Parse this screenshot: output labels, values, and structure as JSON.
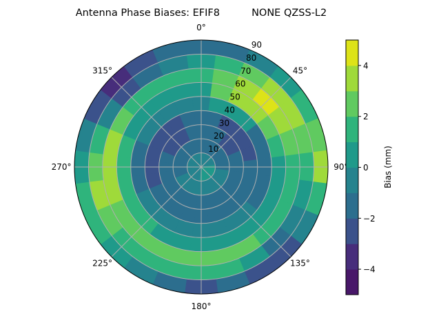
{
  "chart_data": {
    "type": "heatmap",
    "subtype": "polar-filled-contour",
    "title": "Antenna Phase Biases: EFIF8          NONE QZSS-L2",
    "azimuth_direction": "clockwise",
    "azimuth_zero": "top",
    "azimuth_tick_labels": [
      "0°",
      "45°",
      "90°",
      "135°",
      "180°",
      "225°",
      "270°",
      "315°"
    ],
    "radial_tick_labels": [
      "10",
      "20",
      "30",
      "40",
      "50",
      "60",
      "70",
      "80",
      "90"
    ],
    "radial_range": [
      0,
      90
    ],
    "grid": true,
    "azimuth_bins_deg": [
      0,
      15,
      30,
      45,
      60,
      75,
      90,
      105,
      120,
      135,
      150,
      165,
      180,
      195,
      210,
      225,
      240,
      255,
      270,
      285,
      300,
      315,
      330,
      345
    ],
    "radial_bins": [
      [
        0,
        10
      ],
      [
        10,
        20
      ],
      [
        20,
        30
      ],
      [
        30,
        40
      ],
      [
        40,
        50
      ],
      [
        50,
        60
      ],
      [
        60,
        70
      ],
      [
        70,
        80
      ],
      [
        80,
        90
      ]
    ],
    "values_mm": [
      [
        -0.5,
        -0.5,
        -0.5,
        -0.5,
        -0.5,
        -0.5,
        0.5,
        0.5,
        0.5,
        0.5,
        0.5,
        0.5,
        0.5,
        -0.5,
        -0.5,
        -0.5,
        -0.5,
        -0.5,
        -0.5,
        -0.5,
        -0.5,
        -0.5,
        -0.5,
        -0.5
      ],
      [
        -1.3,
        -1.3,
        -1.3,
        -1.3,
        -1.3,
        -1.3,
        -1.3,
        -0.5,
        -0.5,
        -0.5,
        -0.5,
        -0.5,
        -0.5,
        -0.5,
        -0.5,
        -0.5,
        -0.5,
        -1.3,
        -1.3,
        -1.3,
        -1.3,
        -1.3,
        -1.3,
        -1.3
      ],
      [
        -1.5,
        -1.5,
        -1.5,
        -2.5,
        -2.5,
        -1.5,
        -1.5,
        -1.5,
        -1.5,
        -1.5,
        -1.5,
        -1.5,
        -1.5,
        -1.5,
        -1.5,
        -1.5,
        -1.5,
        -1.5,
        -1.5,
        -1.5,
        -2.3,
        -2.3,
        -2.3,
        -1.5
      ],
      [
        -1.5,
        -1.5,
        -2.5,
        -2.5,
        -2.5,
        -2.5,
        -1.5,
        -1.5,
        -1.5,
        -1.5,
        -1.5,
        -1.5,
        -1.5,
        -1.5,
        -1.5,
        -1.5,
        -1.5,
        -2.5,
        -2.5,
        -2.5,
        -2.5,
        -2.5,
        -2.5,
        -1.5
      ],
      [
        -0.5,
        0.5,
        0.5,
        0.5,
        -1.5,
        -1.5,
        -1.5,
        -1.5,
        -1.5,
        -0.5,
        -0.5,
        -0.5,
        -0.5,
        -0.5,
        -0.5,
        -0.5,
        -0.5,
        -1.5,
        -1.5,
        -1.5,
        -0.5,
        -0.5,
        -0.5,
        -0.5
      ],
      [
        0.5,
        2.5,
        3.5,
        3.5,
        2.5,
        1.5,
        0.5,
        0.5,
        0.5,
        0.5,
        0.5,
        0.5,
        0.5,
        0.5,
        0.5,
        1.5,
        1.5,
        1.5,
        1.5,
        1.5,
        0.5,
        0.5,
        0.5,
        0.5
      ],
      [
        1.5,
        2.5,
        3.5,
        4.5,
        3.5,
        2.5,
        1.5,
        1.5,
        1.5,
        1.5,
        2.5,
        2.5,
        2.5,
        2.5,
        2.5,
        2.5,
        2.5,
        3.5,
        3.5,
        3.5,
        2.5,
        1.5,
        1.5,
        1.5
      ],
      [
        0.5,
        1.5,
        2.5,
        3.5,
        3.5,
        2.5,
        1.5,
        0.5,
        -0.5,
        -1.5,
        0.5,
        1.5,
        1.5,
        1.5,
        1.5,
        1.5,
        2.5,
        3.5,
        2.5,
        1.5,
        -0.5,
        -2.5,
        -1.5,
        -0.5
      ],
      [
        -1.5,
        -1.5,
        -0.5,
        0.5,
        1.5,
        2.5,
        3.5,
        1.5,
        -0.5,
        -2.5,
        -2.5,
        -1.5,
        -2.5,
        -1.5,
        -0.5,
        0.5,
        1.5,
        1.5,
        0.5,
        -0.5,
        -2.5,
        -3.5,
        -2.5,
        -1.5
      ]
    ],
    "colorbar": {
      "label": "Bias (mm)",
      "range": [
        -5,
        5
      ],
      "levels": [
        -5,
        -4,
        -3,
        -2,
        -1,
        0,
        1,
        2,
        3,
        4,
        5
      ],
      "tick_labels": [
        "−4",
        "−2",
        "0",
        "2",
        "4"
      ],
      "tick_values": [
        -4,
        -2,
        0,
        2,
        4
      ],
      "colormap": "viridis",
      "colors": [
        "#481769",
        "#472d7b",
        "#3b528b",
        "#2c6e8e",
        "#25838e",
        "#1f9a8a",
        "#2fb47c",
        "#60ca60",
        "#9fda3a",
        "#dde318"
      ]
    }
  }
}
